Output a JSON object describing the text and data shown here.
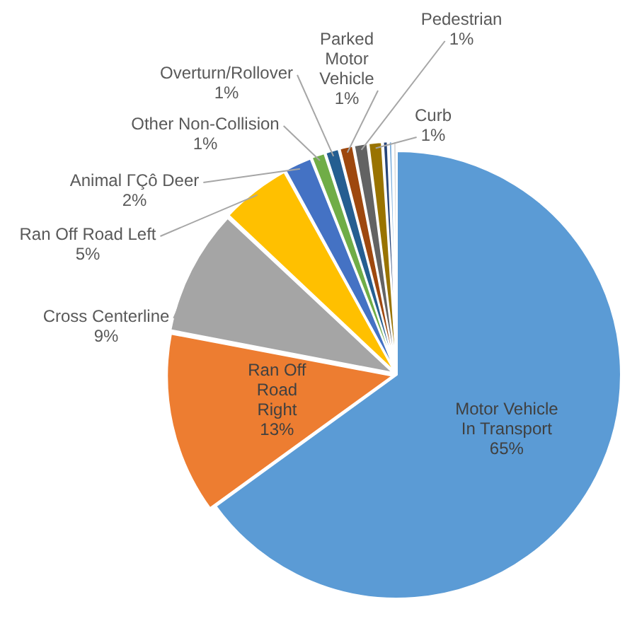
{
  "chart_data": {
    "type": "pie",
    "categories": [
      "Motor Vehicle In Transport",
      "Ran Off Road Right",
      "Cross Centerline",
      "Ran Off Road Left",
      "Animal ΓÇô Deer",
      "Other Non-Collision",
      "Overturn/Rollover",
      "Parked Motor Vehicle",
      "Pedestrian",
      "Curb",
      null,
      null,
      null
    ],
    "values": [
      65,
      13,
      9,
      5,
      2,
      1,
      1,
      1,
      1,
      1,
      0.4,
      0.3,
      0.3
    ],
    "value_labels": [
      "65%",
      "13%",
      "9%",
      "5%",
      "2%",
      "1%",
      "1%",
      "1%",
      "1%",
      "1%",
      null,
      null,
      null
    ],
    "colors": [
      "#5b9bd5",
      "#ed7d31",
      "#a5a5a5",
      "#ffc000",
      "#4472c4",
      "#70ad47",
      "#255e91",
      "#9e480e",
      "#636363",
      "#997300",
      "#264478",
      "#7cafdd",
      "#d9d9d9"
    ]
  }
}
